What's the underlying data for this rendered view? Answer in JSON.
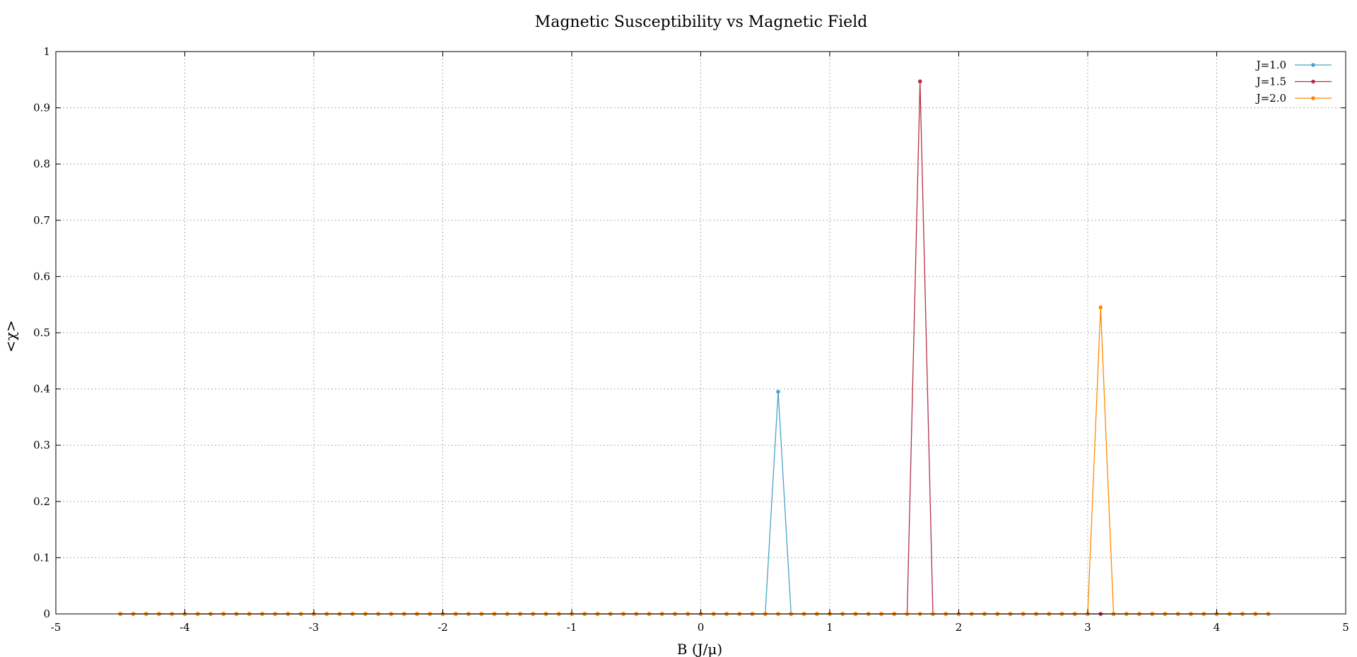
{
  "chart_data": {
    "type": "line",
    "title": "Magnetic Susceptibility vs Magnetic Field",
    "xlabel": "B (J/μ)",
    "ylabel": "<χ>",
    "xlim": [
      -5,
      5
    ],
    "ylim": [
      0,
      1
    ],
    "xticks": [
      -5,
      -4,
      -3,
      -2,
      -1,
      0,
      1,
      2,
      3,
      4,
      5
    ],
    "yticks": [
      0,
      0.1,
      0.2,
      0.3,
      0.4,
      0.5,
      0.6,
      0.7,
      0.8,
      0.9,
      1
    ],
    "xtick_labels": [
      "-5",
      "-4",
      "-3",
      "-2",
      "-1",
      "0",
      "1",
      "2",
      "3",
      "4",
      "5"
    ],
    "ytick_labels": [
      "0",
      "0.1",
      "0.2",
      "0.3",
      "0.4",
      "0.5",
      "0.6",
      "0.7",
      "0.8",
      "0.9",
      "1"
    ],
    "grid": true,
    "legend_position": "top-right",
    "x_start": -4.5,
    "x_step": 0.1,
    "n_points": 90,
    "series": [
      {
        "name": "J=1.0",
        "color": "#4aa3c8",
        "peak_x": 0.6,
        "peak_y": 0.395,
        "baseline": 0
      },
      {
        "name": "J=1.5",
        "color": "#b5304a",
        "peak_x": 1.7,
        "peak_y": 0.947,
        "baseline": 0
      },
      {
        "name": "J=2.0",
        "color": "#ff8a00",
        "peak_x": 3.1,
        "peak_y": 0.545,
        "baseline": 0
      }
    ]
  }
}
